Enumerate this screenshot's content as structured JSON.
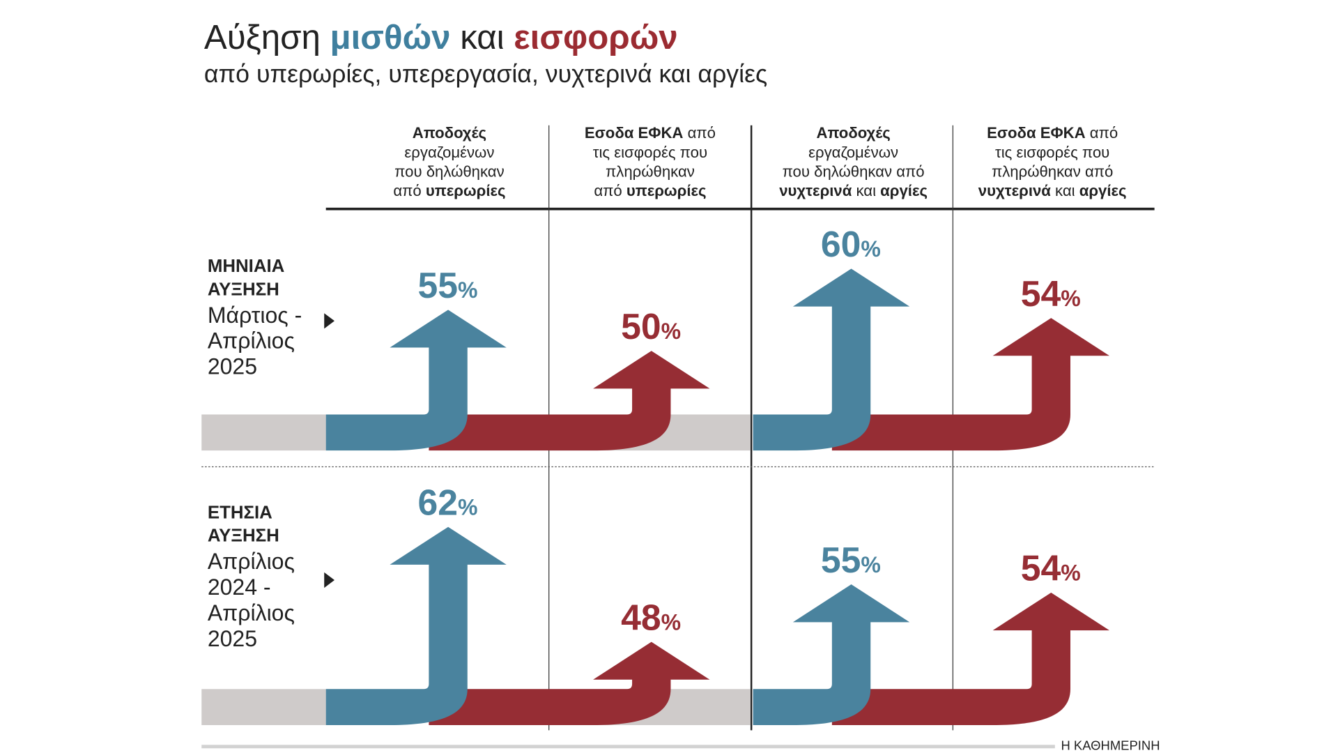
{
  "title": {
    "part1": "Αύξηση ",
    "part2": "μισθών",
    "part3": " και ",
    "part4": "εισφορών"
  },
  "subtitle": "από υπερωρίες, υπερεργασία, νυχτερινά και αργίες",
  "colors": {
    "blue": "#4a839e",
    "red": "#962d34",
    "gray": "#cfcbca",
    "text": "#222222"
  },
  "columns": [
    {
      "lines": [
        [
          {
            "t": "Αποδοχές",
            "b": true
          }
        ],
        [
          {
            "t": "εργαζομένων",
            "b": false
          }
        ],
        [
          {
            "t": "που δηλώθηκαν",
            "b": false
          }
        ],
        [
          {
            "t": "από  ",
            "b": false
          },
          {
            "t": "υπερωρίες",
            "b": true
          }
        ]
      ],
      "color": "blue"
    },
    {
      "lines": [
        [
          {
            "t": "Εσοδα ΕΦΚΑ",
            "b": true
          },
          {
            "t": " από",
            "b": false
          }
        ],
        [
          {
            "t": "τις εισφορές που",
            "b": false
          }
        ],
        [
          {
            "t": "πληρώθηκαν",
            "b": false
          }
        ],
        [
          {
            "t": "από ",
            "b": false
          },
          {
            "t": "υπερωρίες",
            "b": true
          }
        ]
      ],
      "color": "red"
    },
    {
      "lines": [
        [
          {
            "t": "Αποδοχές",
            "b": true
          }
        ],
        [
          {
            "t": "εργαζομένων",
            "b": false
          }
        ],
        [
          {
            "t": "που δηλώθηκαν από",
            "b": false
          }
        ],
        [
          {
            "t": "νυχτερινά",
            "b": true
          },
          {
            "t": " και ",
            "b": false
          },
          {
            "t": "αργίες",
            "b": true
          }
        ]
      ],
      "color": "blue"
    },
    {
      "lines": [
        [
          {
            "t": "Εσοδα ΕΦΚΑ",
            "b": true
          },
          {
            "t": " από",
            "b": false
          }
        ],
        [
          {
            "t": "τις εισφορές που",
            "b": false
          }
        ],
        [
          {
            "t": "πληρώθηκαν από",
            "b": false
          }
        ],
        [
          {
            "t": "νυχτερινά",
            "b": true
          },
          {
            "t": " και ",
            "b": false
          },
          {
            "t": "αργίες",
            "b": true
          }
        ]
      ],
      "color": "red"
    }
  ],
  "rows": [
    {
      "label_bold": [
        "ΜΗΝΙΑΙΑ",
        "ΑΥΞΗΣΗ"
      ],
      "label_period": [
        "Μάρτιος -",
        "Απρίλιος",
        "2025"
      ]
    },
    {
      "label_bold": [
        "ΕΤΗΣΙΑ",
        "ΑΥΞΗΣΗ"
      ],
      "label_period": [
        "Απρίλιος",
        "2024 -",
        "Απρίλιος",
        "2025"
      ]
    }
  ],
  "chart_data": {
    "type": "bar",
    "title": "Αύξηση μισθών και εισφορών",
    "subtitle": "από υπερωρίες, υπερεργασία, νυχτερινά και αργίες",
    "categories": [
      "Αποδοχές εργαζομένων από υπερωρίες",
      "Εσοδα ΕΦΚΑ από εισφορές υπερωριών",
      "Αποδοχές εργαζομένων από νυχτερινά και αργίες",
      "Εσοδα ΕΦΚΑ από εισφορές νυχτερινών και αργιών"
    ],
    "series": [
      {
        "name": "Μηνιαία αύξηση Μάρτιος - Απρίλιος 2025",
        "values": [
          55,
          50,
          60,
          54
        ]
      },
      {
        "name": "Ετήσια αύξηση Απρίλιος 2024 - Απρίλιος 2025",
        "values": [
          62,
          48,
          55,
          54
        ]
      }
    ],
    "unit": "%"
  },
  "source": "Η ΚΑΘΗΜΕΡΙΝΗ"
}
